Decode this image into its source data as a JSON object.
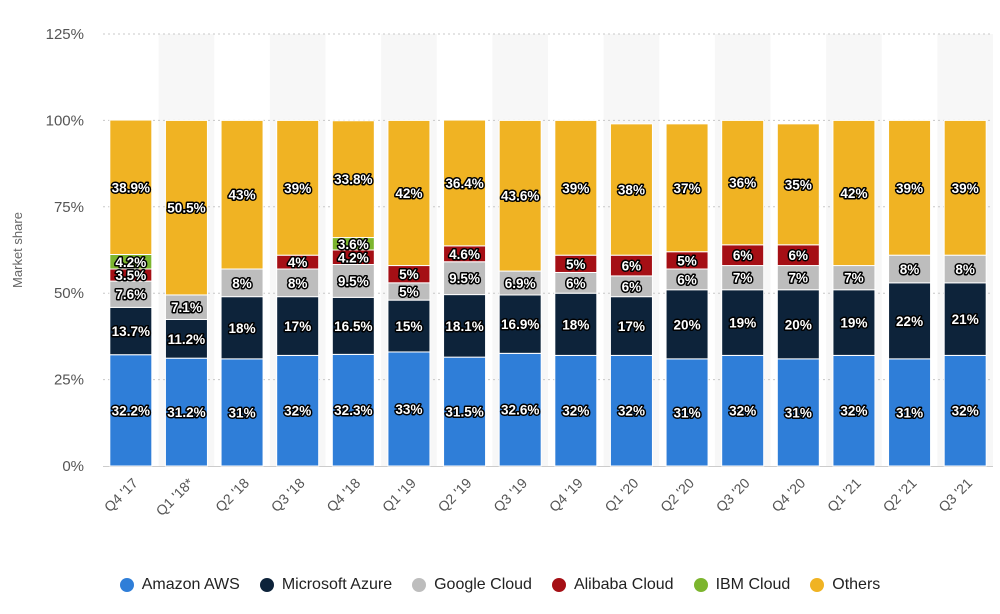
{
  "chart_data": {
    "type": "bar",
    "stacked": true,
    "title": "",
    "xlabel": "",
    "ylabel": "Market share",
    "ylim": [
      0,
      125
    ],
    "yticks": [
      "0%",
      "25%",
      "50%",
      "75%",
      "100%",
      "125%"
    ],
    "grid": true,
    "legend_position": "bottom",
    "categories": [
      "Q4 '17",
      "Q1 '18*",
      "Q2 '18",
      "Q3 '18",
      "Q4 '18",
      "Q1 '19",
      "Q2 '19",
      "Q3 '19",
      "Q4 '19",
      "Q1 '20",
      "Q2 '20",
      "Q3 '20",
      "Q4 '20",
      "Q1 '21",
      "Q2 '21",
      "Q3 '21"
    ],
    "series": [
      {
        "name": "Amazon AWS",
        "color": "#2f7ed8",
        "values": [
          32.2,
          31.2,
          31,
          32,
          32.3,
          33,
          31.5,
          32.6,
          32,
          32,
          31,
          32,
          31,
          32,
          31,
          32
        ],
        "labels": [
          "32.2%",
          "31.2%",
          "31%",
          "32%",
          "32.3%",
          "33%",
          "31.5%",
          "32.6%",
          "32%",
          "32%",
          "31%",
          "32%",
          "31%",
          "32%",
          "31%",
          "32%"
        ]
      },
      {
        "name": "Microsoft Azure",
        "color": "#0d233a",
        "values": [
          13.7,
          11.2,
          18,
          17,
          16.5,
          15,
          18.1,
          16.9,
          18,
          17,
          20,
          19,
          20,
          19,
          22,
          21
        ],
        "labels": [
          "13.7%",
          "11.2%",
          "18%",
          "17%",
          "16.5%",
          "15%",
          "18.1%",
          "16.9%",
          "18%",
          "17%",
          "20%",
          "19%",
          "20%",
          "19%",
          "22%",
          "21%"
        ]
      },
      {
        "name": "Google Cloud",
        "color": "#bdbdbd",
        "values": [
          7.6,
          7.1,
          8,
          8,
          9.5,
          5,
          9.5,
          6.9,
          6,
          6,
          6,
          7,
          7,
          7,
          8,
          8
        ],
        "labels": [
          "7.6%",
          "7.1%",
          "8%",
          "8%",
          "9.5%",
          "5%",
          "9.5%",
          "6.9%",
          "6%",
          "6%",
          "6%",
          "7%",
          "7%",
          "7%",
          "8%",
          "8%"
        ]
      },
      {
        "name": "Alibaba Cloud",
        "color": "#a50f15",
        "values": [
          3.5,
          null,
          null,
          4,
          4.2,
          5,
          4.6,
          null,
          5,
          6,
          5,
          6,
          6,
          null,
          null,
          null
        ],
        "labels": [
          "3.5%",
          null,
          null,
          "4%",
          "4.2%",
          "5%",
          "4.6%",
          null,
          "5%",
          "6%",
          "5%",
          "6%",
          "6%",
          null,
          null,
          null
        ]
      },
      {
        "name": "IBM Cloud",
        "color": "#7cb52e",
        "values": [
          4.2,
          null,
          null,
          null,
          3.6,
          null,
          null,
          null,
          null,
          null,
          null,
          null,
          null,
          null,
          null,
          null
        ],
        "labels": [
          "4.2%",
          null,
          null,
          null,
          "3.6%",
          null,
          null,
          null,
          null,
          null,
          null,
          null,
          null,
          null,
          null,
          null
        ]
      },
      {
        "name": "Others",
        "color": "#f0b323",
        "values": [
          38.9,
          50.5,
          43,
          39,
          33.8,
          42,
          36.4,
          43.6,
          39,
          38,
          37,
          36,
          35,
          42,
          39,
          39
        ],
        "labels": [
          "38.9%",
          "50.5%",
          "43%",
          "39%",
          "33.8%",
          "42%",
          "36.4%",
          "43.6%",
          "39%",
          "38%",
          "37%",
          "36%",
          "35%",
          "42%",
          "39%",
          "39%"
        ]
      }
    ]
  }
}
